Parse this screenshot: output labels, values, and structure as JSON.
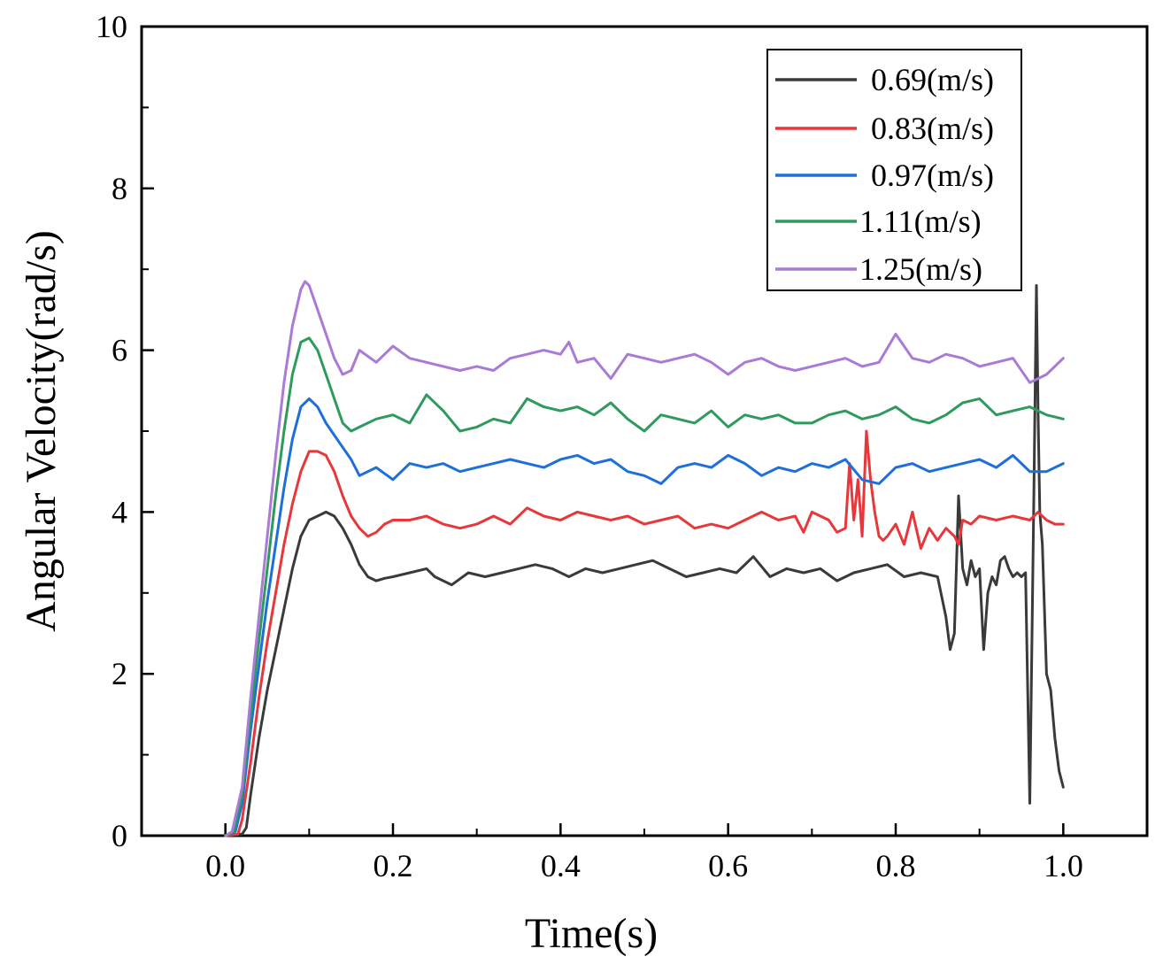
{
  "chart_data": {
    "type": "line",
    "title": "",
    "xlabel": "Time(s)",
    "ylabel": "Angular Velocity(rad/s)",
    "xlim": [
      -0.1,
      1.1
    ],
    "ylim": [
      0,
      10
    ],
    "xticks": [
      0.0,
      0.2,
      0.4,
      0.6,
      0.8,
      1.0
    ],
    "xtick_labels": [
      "0.0",
      "0.2",
      "0.4",
      "0.6",
      "0.8",
      "1.0"
    ],
    "yticks": [
      0,
      2,
      4,
      6,
      8,
      10
    ],
    "ytick_labels": [
      "0",
      "2",
      "4",
      "6",
      "8",
      "10"
    ],
    "grid": false,
    "legend_position": "top-right",
    "series": [
      {
        "name": "0.69(m/s)",
        "color": "#3a3a3a",
        "x": [
          0,
          0.02,
          0.025,
          0.03,
          0.04,
          0.05,
          0.06,
          0.07,
          0.08,
          0.09,
          0.1,
          0.11,
          0.12,
          0.13,
          0.14,
          0.15,
          0.16,
          0.17,
          0.18,
          0.19,
          0.2,
          0.22,
          0.24,
          0.25,
          0.27,
          0.29,
          0.31,
          0.33,
          0.35,
          0.37,
          0.39,
          0.41,
          0.43,
          0.45,
          0.47,
          0.49,
          0.51,
          0.53,
          0.55,
          0.57,
          0.59,
          0.61,
          0.63,
          0.65,
          0.67,
          0.69,
          0.71,
          0.73,
          0.75,
          0.77,
          0.79,
          0.81,
          0.83,
          0.85,
          0.86,
          0.865,
          0.87,
          0.875,
          0.88,
          0.885,
          0.89,
          0.895,
          0.9,
          0.905,
          0.91,
          0.915,
          0.92,
          0.925,
          0.93,
          0.935,
          0.94,
          0.945,
          0.95,
          0.955,
          0.96,
          0.965,
          0.968,
          0.97,
          0.972,
          0.975,
          0.98,
          0.985,
          0.99,
          0.995,
          1.0
        ],
        "y": [
          0,
          0.02,
          0.1,
          0.5,
          1.2,
          1.8,
          2.3,
          2.8,
          3.3,
          3.7,
          3.9,
          3.95,
          4.0,
          3.95,
          3.8,
          3.6,
          3.35,
          3.2,
          3.15,
          3.18,
          3.2,
          3.25,
          3.3,
          3.2,
          3.1,
          3.25,
          3.2,
          3.25,
          3.3,
          3.35,
          3.3,
          3.2,
          3.3,
          3.25,
          3.3,
          3.35,
          3.4,
          3.3,
          3.2,
          3.25,
          3.3,
          3.25,
          3.45,
          3.2,
          3.3,
          3.25,
          3.3,
          3.15,
          3.25,
          3.3,
          3.35,
          3.2,
          3.25,
          3.2,
          2.7,
          2.3,
          2.5,
          4.2,
          3.3,
          3.1,
          3.4,
          3.2,
          3.3,
          2.3,
          3.0,
          3.2,
          3.1,
          3.4,
          3.45,
          3.3,
          3.2,
          3.25,
          3.2,
          3.25,
          0.4,
          4.3,
          6.8,
          5.2,
          4.0,
          3.6,
          2.0,
          1.8,
          1.2,
          0.8,
          0.6
        ]
      },
      {
        "name": "0.83(m/s)",
        "color": "#e8373a",
        "x": [
          0,
          0.015,
          0.02,
          0.03,
          0.04,
          0.05,
          0.06,
          0.07,
          0.08,
          0.09,
          0.1,
          0.11,
          0.12,
          0.13,
          0.14,
          0.15,
          0.16,
          0.17,
          0.18,
          0.19,
          0.2,
          0.22,
          0.24,
          0.26,
          0.28,
          0.3,
          0.32,
          0.34,
          0.36,
          0.38,
          0.4,
          0.42,
          0.44,
          0.46,
          0.48,
          0.5,
          0.52,
          0.54,
          0.56,
          0.58,
          0.6,
          0.62,
          0.64,
          0.66,
          0.68,
          0.69,
          0.7,
          0.72,
          0.73,
          0.74,
          0.745,
          0.75,
          0.755,
          0.76,
          0.765,
          0.77,
          0.775,
          0.78,
          0.785,
          0.79,
          0.8,
          0.81,
          0.82,
          0.83,
          0.84,
          0.85,
          0.86,
          0.87,
          0.875,
          0.88,
          0.89,
          0.9,
          0.92,
          0.94,
          0.96,
          0.97,
          0.98,
          0.99,
          1.0
        ],
        "y": [
          0,
          0.02,
          0.2,
          0.9,
          1.7,
          2.4,
          3.0,
          3.6,
          4.1,
          4.5,
          4.75,
          4.75,
          4.7,
          4.5,
          4.2,
          3.95,
          3.8,
          3.7,
          3.75,
          3.85,
          3.9,
          3.9,
          3.95,
          3.85,
          3.8,
          3.85,
          3.95,
          3.85,
          4.05,
          3.95,
          3.9,
          4.0,
          3.95,
          3.9,
          3.95,
          3.85,
          3.9,
          3.95,
          3.8,
          3.85,
          3.8,
          3.9,
          4.0,
          3.9,
          3.95,
          3.75,
          4.0,
          3.9,
          3.75,
          3.8,
          4.6,
          3.9,
          4.4,
          3.7,
          5.0,
          4.4,
          4.0,
          3.7,
          3.65,
          3.7,
          3.85,
          3.6,
          4.0,
          3.55,
          3.8,
          3.65,
          3.8,
          3.7,
          3.6,
          3.9,
          3.85,
          3.95,
          3.9,
          3.95,
          3.9,
          4.0,
          3.9,
          3.85,
          3.85
        ]
      },
      {
        "name": "0.97(m/s)",
        "color": "#1e6fd9",
        "x": [
          0,
          0.012,
          0.02,
          0.03,
          0.04,
          0.05,
          0.06,
          0.07,
          0.08,
          0.09,
          0.1,
          0.11,
          0.12,
          0.13,
          0.14,
          0.15,
          0.16,
          0.18,
          0.2,
          0.22,
          0.24,
          0.26,
          0.28,
          0.3,
          0.32,
          0.34,
          0.36,
          0.38,
          0.4,
          0.42,
          0.44,
          0.46,
          0.48,
          0.5,
          0.52,
          0.54,
          0.56,
          0.58,
          0.6,
          0.62,
          0.64,
          0.66,
          0.68,
          0.7,
          0.72,
          0.74,
          0.76,
          0.78,
          0.8,
          0.82,
          0.84,
          0.86,
          0.88,
          0.9,
          0.92,
          0.94,
          0.96,
          0.98,
          1.0
        ],
        "y": [
          0,
          0.05,
          0.4,
          1.3,
          2.1,
          2.9,
          3.6,
          4.3,
          4.9,
          5.3,
          5.4,
          5.3,
          5.1,
          4.95,
          4.8,
          4.65,
          4.45,
          4.55,
          4.4,
          4.6,
          4.55,
          4.6,
          4.5,
          4.55,
          4.6,
          4.65,
          4.6,
          4.55,
          4.65,
          4.7,
          4.6,
          4.65,
          4.5,
          4.45,
          4.35,
          4.55,
          4.6,
          4.55,
          4.7,
          4.6,
          4.45,
          4.55,
          4.5,
          4.6,
          4.55,
          4.65,
          4.4,
          4.35,
          4.55,
          4.6,
          4.5,
          4.55,
          4.6,
          4.65,
          4.55,
          4.7,
          4.5,
          4.5,
          4.6
        ]
      },
      {
        "name": "1.11(m/s)",
        "color": "#2e9a5e",
        "x": [
          0,
          0.01,
          0.02,
          0.03,
          0.04,
          0.05,
          0.06,
          0.07,
          0.08,
          0.09,
          0.1,
          0.11,
          0.12,
          0.13,
          0.14,
          0.15,
          0.16,
          0.18,
          0.2,
          0.22,
          0.24,
          0.26,
          0.28,
          0.3,
          0.32,
          0.34,
          0.36,
          0.38,
          0.4,
          0.42,
          0.44,
          0.46,
          0.48,
          0.5,
          0.52,
          0.54,
          0.56,
          0.58,
          0.6,
          0.62,
          0.64,
          0.66,
          0.68,
          0.7,
          0.72,
          0.74,
          0.76,
          0.78,
          0.8,
          0.82,
          0.84,
          0.86,
          0.88,
          0.9,
          0.92,
          0.94,
          0.96,
          0.98,
          1.0
        ],
        "y": [
          0,
          0.05,
          0.5,
          1.5,
          2.4,
          3.3,
          4.2,
          5.0,
          5.7,
          6.1,
          6.15,
          6.0,
          5.7,
          5.4,
          5.1,
          5.0,
          5.05,
          5.15,
          5.2,
          5.1,
          5.45,
          5.25,
          5.0,
          5.05,
          5.15,
          5.1,
          5.4,
          5.3,
          5.25,
          5.3,
          5.2,
          5.35,
          5.15,
          5.0,
          5.2,
          5.15,
          5.1,
          5.25,
          5.05,
          5.2,
          5.15,
          5.2,
          5.1,
          5.1,
          5.2,
          5.25,
          5.15,
          5.2,
          5.3,
          5.15,
          5.1,
          5.2,
          5.35,
          5.4,
          5.2,
          5.25,
          5.3,
          5.2,
          5.15
        ]
      },
      {
        "name": "1.25(m/s)",
        "color": "#a97ad6",
        "x": [
          0,
          0.008,
          0.02,
          0.03,
          0.04,
          0.05,
          0.06,
          0.07,
          0.08,
          0.09,
          0.095,
          0.1,
          0.11,
          0.12,
          0.13,
          0.14,
          0.15,
          0.16,
          0.18,
          0.2,
          0.22,
          0.24,
          0.26,
          0.28,
          0.3,
          0.32,
          0.34,
          0.36,
          0.38,
          0.4,
          0.41,
          0.42,
          0.44,
          0.46,
          0.48,
          0.5,
          0.52,
          0.54,
          0.56,
          0.58,
          0.6,
          0.62,
          0.64,
          0.66,
          0.68,
          0.7,
          0.72,
          0.74,
          0.76,
          0.78,
          0.8,
          0.82,
          0.84,
          0.86,
          0.88,
          0.9,
          0.92,
          0.94,
          0.96,
          0.98,
          1.0
        ],
        "y": [
          0,
          0.05,
          0.6,
          1.7,
          2.7,
          3.7,
          4.7,
          5.6,
          6.3,
          6.75,
          6.85,
          6.8,
          6.5,
          6.2,
          5.9,
          5.7,
          5.75,
          6.0,
          5.85,
          6.05,
          5.9,
          5.85,
          5.8,
          5.75,
          5.8,
          5.75,
          5.9,
          5.95,
          6.0,
          5.95,
          6.1,
          5.85,
          5.9,
          5.65,
          5.95,
          5.9,
          5.85,
          5.9,
          5.95,
          5.85,
          5.7,
          5.85,
          5.9,
          5.8,
          5.75,
          5.8,
          5.85,
          5.9,
          5.8,
          5.85,
          6.2,
          5.9,
          5.85,
          5.95,
          5.9,
          5.8,
          5.85,
          5.9,
          5.6,
          5.7,
          5.9
        ]
      }
    ]
  }
}
